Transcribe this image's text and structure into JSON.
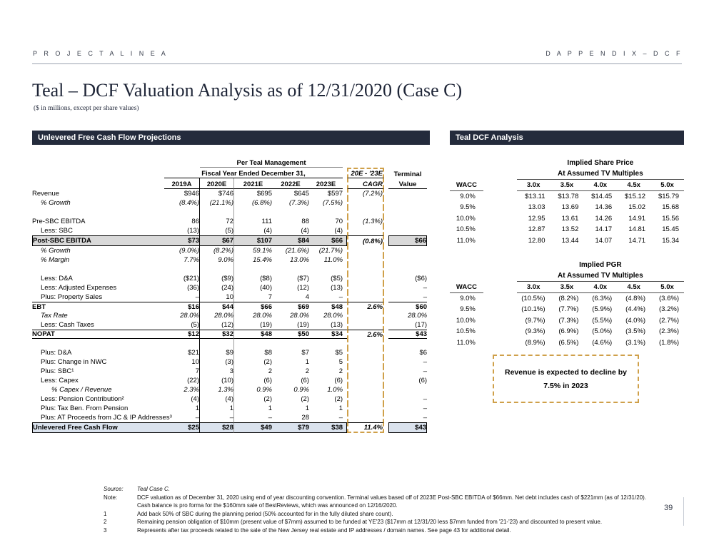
{
  "page_header": {
    "left": "P R O J E C T   A L I N E A",
    "right": "D    A P P E N D I X   –   D C F"
  },
  "title": "Teal – DCF Valuation Analysis as of 12/31/2020 (Case C)",
  "subtitle": "($ in millions, except per share values)",
  "page_number": "39",
  "colors": {
    "section_bar": "#242b3c",
    "dashed_accent": "#cfa04a",
    "highlight_gray": "#d9d9d9",
    "highlight_blue": "#dae2ed"
  },
  "ufcf": {
    "header": "Unlevered Free Cash Flow Projections",
    "group1": "Per Teal Management",
    "group2": "Fiscal Year Ended December 31,",
    "cagr_label": "20E - '23E",
    "cagr_col": "CAGR",
    "terminal_label_1": "Terminal",
    "terminal_label_2": "Value",
    "columns": [
      "2019A",
      "2020E",
      "2021E",
      "2022E",
      "2023E"
    ],
    "rows": [
      {
        "label": "Revenue",
        "indent": 0,
        "style": "plain",
        "cells": [
          "$946",
          "$746",
          "$695",
          "$645",
          "$597"
        ],
        "cagr": "(7.2%)",
        "terminal": ""
      },
      {
        "label": "% Growth",
        "indent": 1,
        "style": "italic",
        "cells": [
          "(8.4%)",
          "(21.1%)",
          "(6.8%)",
          "(7.3%)",
          "(7.5%)"
        ],
        "cagr": "",
        "terminal": ""
      },
      {
        "spacer": true
      },
      {
        "label": "Pre-SBC EBITDA",
        "indent": 0,
        "style": "plain",
        "cells": [
          "86",
          "72",
          "111",
          "88",
          "70"
        ],
        "cagr": "(1.3%)",
        "terminal": ""
      },
      {
        "label": "Less: SBC",
        "indent": 1,
        "style": "plain",
        "cells": [
          "(13)",
          "(5)",
          "(4)",
          "(4)",
          "(4)"
        ],
        "cagr": "",
        "terminal": ""
      },
      {
        "label": "Post-SBC EBITDA",
        "indent": 0,
        "style": "boxed-gray",
        "cells": [
          "$73",
          "$67",
          "$107",
          "$84",
          "$66"
        ],
        "cagr": "(0.8%)",
        "terminal": "$66"
      },
      {
        "label": "% Growth",
        "indent": 1,
        "style": "italic",
        "cells": [
          "(9.0%)",
          "(8.2%)",
          "59.1%",
          "(21.6%)",
          "(21.7%)"
        ],
        "cagr": "",
        "terminal": ""
      },
      {
        "label": "% Margin",
        "indent": 1,
        "style": "italic",
        "cells": [
          "7.7%",
          "9.0%",
          "15.4%",
          "13.0%",
          "11.0%"
        ],
        "cagr": "",
        "terminal": ""
      },
      {
        "spacer": true
      },
      {
        "label": "Less: D&A",
        "indent": 1,
        "style": "plain",
        "cells": [
          "($21)",
          "($9)",
          "($8)",
          "($7)",
          "($5)"
        ],
        "cagr": "",
        "terminal": "($6)"
      },
      {
        "label": "Less: Adjusted Expenses",
        "indent": 1,
        "style": "plain",
        "cells": [
          "(36)",
          "(24)",
          "(40)",
          "(12)",
          "(13)"
        ],
        "cagr": "",
        "terminal": "–"
      },
      {
        "label": "Plus: Property Sales",
        "indent": 1,
        "style": "plain",
        "cells": [
          "–",
          "10",
          "7",
          "4",
          "–"
        ],
        "cagr": "",
        "terminal": "–"
      },
      {
        "label": "EBT",
        "indent": 0,
        "style": "rule-top",
        "cells": [
          "$16",
          "$44",
          "$66",
          "$69",
          "$48"
        ],
        "cagr": "2.6%",
        "terminal": "$60"
      },
      {
        "label": "Tax Rate",
        "indent": 1,
        "style": "italic",
        "cells": [
          "28.0%",
          "28.0%",
          "28.0%",
          "28.0%",
          "28.0%"
        ],
        "cagr": "",
        "terminal": "28.0%"
      },
      {
        "label": "Less: Cash Taxes",
        "indent": 1,
        "style": "plain",
        "cells": [
          "(5)",
          "(12)",
          "(19)",
          "(19)",
          "(13)"
        ],
        "cagr": "",
        "terminal": "(17)"
      },
      {
        "label": "NOPAT",
        "indent": 0,
        "style": "rule-top-bottom",
        "cells": [
          "$12",
          "$32",
          "$48",
          "$50",
          "$34"
        ],
        "cagr": "2.6%",
        "terminal": "$43"
      },
      {
        "spacer": true
      },
      {
        "label": "Plus: D&A",
        "indent": 1,
        "style": "plain",
        "cells": [
          "$21",
          "$9",
          "$8",
          "$7",
          "$5"
        ],
        "cagr": "",
        "terminal": "$6"
      },
      {
        "label": "Plus: Change in NWC",
        "indent": 1,
        "style": "plain",
        "cells": [
          "10",
          "(3)",
          "(2)",
          "1",
          "5"
        ],
        "cagr": "",
        "terminal": "–"
      },
      {
        "label": "Plus: SBC¹",
        "indent": 1,
        "style": "plain",
        "cells": [
          "7",
          "3",
          "2",
          "2",
          "2"
        ],
        "cagr": "",
        "terminal": "–"
      },
      {
        "label": "Less: Capex",
        "indent": 1,
        "style": "plain",
        "cells": [
          "(22)",
          "(10)",
          "(6)",
          "(6)",
          "(6)"
        ],
        "cagr": "",
        "terminal": "(6)"
      },
      {
        "label": "% Capex / Revenue",
        "indent": 2,
        "style": "italic",
        "cells": [
          "2.3%",
          "1.3%",
          "0.9%",
          "0.9%",
          "1.0%"
        ],
        "cagr": "",
        "terminal": ""
      },
      {
        "label": "Less: Pension Contribution²",
        "indent": 1,
        "style": "plain",
        "cells": [
          "(4)",
          "(4)",
          "(2)",
          "(2)",
          "(2)"
        ],
        "cagr": "",
        "terminal": "–"
      },
      {
        "label": "Plus: Tax Ben. From Pension",
        "indent": 1,
        "style": "plain",
        "cells": [
          "1",
          "1",
          "1",
          "1",
          "1"
        ],
        "cagr": "",
        "terminal": "–"
      },
      {
        "label": "Plus: AT Proceeds from JC & IP Addresses³",
        "indent": 1,
        "style": "plain",
        "cells": [
          "–",
          "–",
          "–",
          "28",
          "–"
        ],
        "cagr": "",
        "terminal": "–"
      },
      {
        "label": "Unlevered Free Cash Flow",
        "indent": 0,
        "style": "boxed-blue",
        "cells": [
          "$25",
          "$28",
          "$49",
          "$79",
          "$38"
        ],
        "cagr": "11.4%",
        "terminal": "$43"
      }
    ]
  },
  "dcf": {
    "header": "Teal DCF Analysis",
    "tables": [
      {
        "title1": "Implied Share Price",
        "title2": "At Assumed TV Multiples",
        "wacc_label": "WACC",
        "multiples": [
          "3.0x",
          "3.5x",
          "4.0x",
          "4.5x",
          "5.0x"
        ],
        "rows": [
          {
            "wacc": "9.0%",
            "values": [
              "$13.11",
              "$13.78",
              "$14.45",
              "$15.12",
              "$15.79"
            ]
          },
          {
            "wacc": "9.5%",
            "values": [
              "13.03",
              "13.69",
              "14.36",
              "15.02",
              "15.68"
            ]
          },
          {
            "wacc": "10.0%",
            "values": [
              "12.95",
              "13.61",
              "14.26",
              "14.91",
              "15.56"
            ]
          },
          {
            "wacc": "10.5%",
            "values": [
              "12.87",
              "13.52",
              "14.17",
              "14.81",
              "15.45"
            ]
          },
          {
            "wacc": "11.0%",
            "values": [
              "12.80",
              "13.44",
              "14.07",
              "14.71",
              "15.34"
            ]
          }
        ]
      },
      {
        "title1": "Implied PGR",
        "title2": "At Assumed TV Multiples",
        "wacc_label": "WACC",
        "multiples": [
          "3.0x",
          "3.5x",
          "4.0x",
          "4.5x",
          "5.0x"
        ],
        "rows": [
          {
            "wacc": "9.0%",
            "values": [
              "(10.5%)",
              "(8.2%)",
              "(6.3%)",
              "(4.8%)",
              "(3.6%)"
            ]
          },
          {
            "wacc": "9.5%",
            "values": [
              "(10.1%)",
              "(7.7%)",
              "(5.9%)",
              "(4.4%)",
              "(3.2%)"
            ]
          },
          {
            "wacc": "10.0%",
            "values": [
              "(9.7%)",
              "(7.3%)",
              "(5.5%)",
              "(4.0%)",
              "(2.7%)"
            ]
          },
          {
            "wacc": "10.5%",
            "values": [
              "(9.3%)",
              "(6.9%)",
              "(5.0%)",
              "(3.5%)",
              "(2.3%)"
            ]
          },
          {
            "wacc": "11.0%",
            "values": [
              "(8.9%)",
              "(6.5%)",
              "(4.6%)",
              "(3.1%)",
              "(1.8%)"
            ]
          }
        ]
      }
    ],
    "callout_line1": "Revenue is expected to decline by",
    "callout_line2": "7.5% in 2023"
  },
  "footnotes": [
    {
      "label": "Source:",
      "text": "Teal Case C.",
      "italic": true
    },
    {
      "label": "Note:",
      "text": "DCF valuation as of December 31, 2020 using end of year discounting convention. Terminal values based off of 2023E Post-SBC EBITDA of $66mm. Net debt includes cash of $221mm (as of 12/31/20). Cash balance is pro forma for the $160mm sale of BestReviews, which was announced on 12/16/2020.",
      "italic": false
    },
    {
      "label": "1",
      "text": "Add back 50% of SBC during the planning period (50% accounted for in the fully diluted share count).",
      "italic": false
    },
    {
      "label": "2",
      "text": "Remaining pension obligation of $10mm (present value of $7mm) assumed to be funded at YE'23 ($17mm at 12/31/20 less $7mm funded from '21-'23) and discounted to present value.",
      "italic": false
    },
    {
      "label": "3",
      "text": "Represents after tax proceeds related to the sale of the New Jersey real estate and IP addresses / domain names. See page 43 for additional detail.",
      "italic": false
    }
  ]
}
